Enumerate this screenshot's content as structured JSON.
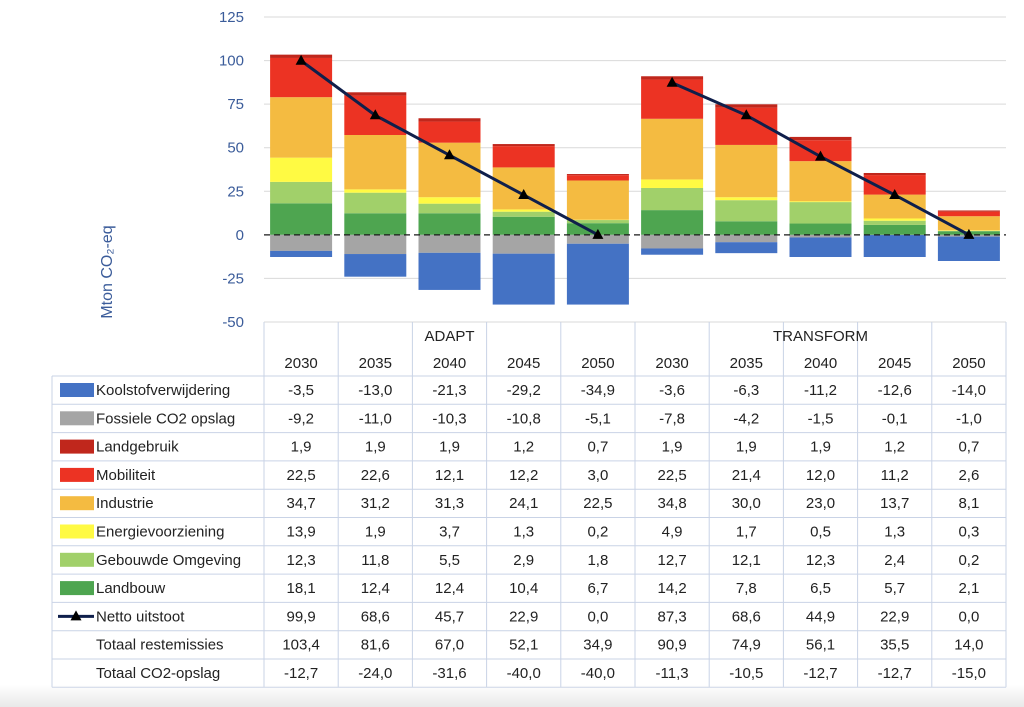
{
  "chart_data": {
    "type": "bar",
    "subtype": "stacked bar with line overlay and data table",
    "ylabel": "Mton CO₂-eq",
    "ylim": [
      -50,
      125
    ],
    "yticks": [
      -50,
      -25,
      0,
      25,
      50,
      75,
      100,
      125
    ],
    "grid": true,
    "zero_line": "dashed",
    "groups": [
      {
        "name": "ADAPT",
        "categories": [
          "2030",
          "2035",
          "2040",
          "2045",
          "2050"
        ]
      },
      {
        "name": "TRANSFORM",
        "categories": [
          "2030",
          "2035",
          "2040",
          "2045",
          "2050"
        ]
      }
    ],
    "series": [
      {
        "name": "Koolstofverwijdering",
        "color": "#4472c4",
        "values": [
          -3.5,
          -13.0,
          -21.3,
          -29.2,
          -34.9,
          -3.6,
          -6.3,
          -11.2,
          -12.6,
          -14.0
        ],
        "labels": [
          "-3,5",
          "-13,0",
          "-21,3",
          "-29,2",
          "-34,9",
          "-3,6",
          "-6,3",
          "-11,2",
          "-12,6",
          "-14,0"
        ]
      },
      {
        "name": "Fossiele CO2 opslag",
        "color": "#a5a5a5",
        "values": [
          -9.2,
          -11.0,
          -10.3,
          -10.8,
          -5.1,
          -7.8,
          -4.2,
          -1.5,
          -0.1,
          -1.0
        ],
        "labels": [
          "-9,2",
          "-11,0",
          "-10,3",
          "-10,8",
          "-5,1",
          "-7,8",
          "-4,2",
          "-1,5",
          "-0,1",
          "-1,0"
        ]
      },
      {
        "name": "Landgebruik",
        "color": "#c0271c",
        "values": [
          1.9,
          1.9,
          1.9,
          1.2,
          0.7,
          1.9,
          1.9,
          1.9,
          1.2,
          0.7
        ],
        "labels": [
          "1,9",
          "1,9",
          "1,9",
          "1,2",
          "0,7",
          "1,9",
          "1,9",
          "1,9",
          "1,2",
          "0,7"
        ]
      },
      {
        "name": "Mobiliteit",
        "color": "#ec3323",
        "values": [
          22.5,
          22.6,
          12.1,
          12.2,
          3.0,
          22.5,
          21.4,
          12.0,
          11.2,
          2.6
        ],
        "labels": [
          "22,5",
          "22,6",
          "12,1",
          "12,2",
          "3,0",
          "22,5",
          "21,4",
          "12,0",
          "11,2",
          "2,6"
        ]
      },
      {
        "name": "Industrie",
        "color": "#f4bb41",
        "values": [
          34.7,
          31.2,
          31.3,
          24.1,
          22.5,
          34.8,
          30.0,
          23.0,
          13.7,
          8.1
        ],
        "labels": [
          "34,7",
          "31,2",
          "31,3",
          "24,1",
          "22,5",
          "34,8",
          "30,0",
          "23,0",
          "13,7",
          "8,1"
        ]
      },
      {
        "name": "Energievoorziening",
        "color": "#fffa43",
        "values": [
          13.9,
          1.9,
          3.7,
          1.3,
          0.2,
          4.9,
          1.7,
          0.5,
          1.3,
          0.3
        ],
        "labels": [
          "13,9",
          "1,9",
          "3,7",
          "1,3",
          "0,2",
          "4,9",
          "1,7",
          "0,5",
          "1,3",
          "0,3"
        ]
      },
      {
        "name": "Gebouwde Omgeving",
        "color": "#a1d06a",
        "values": [
          12.3,
          11.8,
          5.5,
          2.9,
          1.8,
          12.7,
          12.1,
          12.3,
          2.4,
          0.2
        ],
        "labels": [
          "12,3",
          "11,8",
          "5,5",
          "2,9",
          "1,8",
          "12,7",
          "12,1",
          "12,3",
          "2,4",
          "0,2"
        ]
      },
      {
        "name": "Landbouw",
        "color": "#4ea550",
        "values": [
          18.1,
          12.4,
          12.4,
          10.4,
          6.7,
          14.2,
          7.8,
          6.5,
          5.7,
          2.1
        ],
        "labels": [
          "18,1",
          "12,4",
          "12,4",
          "10,4",
          "6,7",
          "14,2",
          "7,8",
          "6,5",
          "5,7",
          "2,1"
        ]
      }
    ],
    "line_series": {
      "name": "Netto uitstoot",
      "color": "#0f1f4b",
      "values": [
        99.9,
        68.6,
        45.7,
        22.9,
        0.0,
        87.3,
        68.6,
        44.9,
        22.9,
        0.0
      ],
      "labels": [
        "99,9",
        "68,6",
        "45,7",
        "22,9",
        "0,0",
        "87,3",
        "68,6",
        "44,9",
        "22,9",
        "0,0"
      ]
    },
    "totals": [
      {
        "name": "Totaal restemissies",
        "labels": [
          "103,4",
          "81,6",
          "67,0",
          "52,1",
          "34,9",
          "90,9",
          "74,9",
          "56,1",
          "35,5",
          "14,0"
        ]
      },
      {
        "name": "Totaal CO2-opslag",
        "labels": [
          "-12,7",
          "-24,0",
          "-31,6",
          "-40,0",
          "-40,0",
          "-11,3",
          "-10,5",
          "-12,7",
          "-12,7",
          "-15,0"
        ]
      }
    ]
  }
}
